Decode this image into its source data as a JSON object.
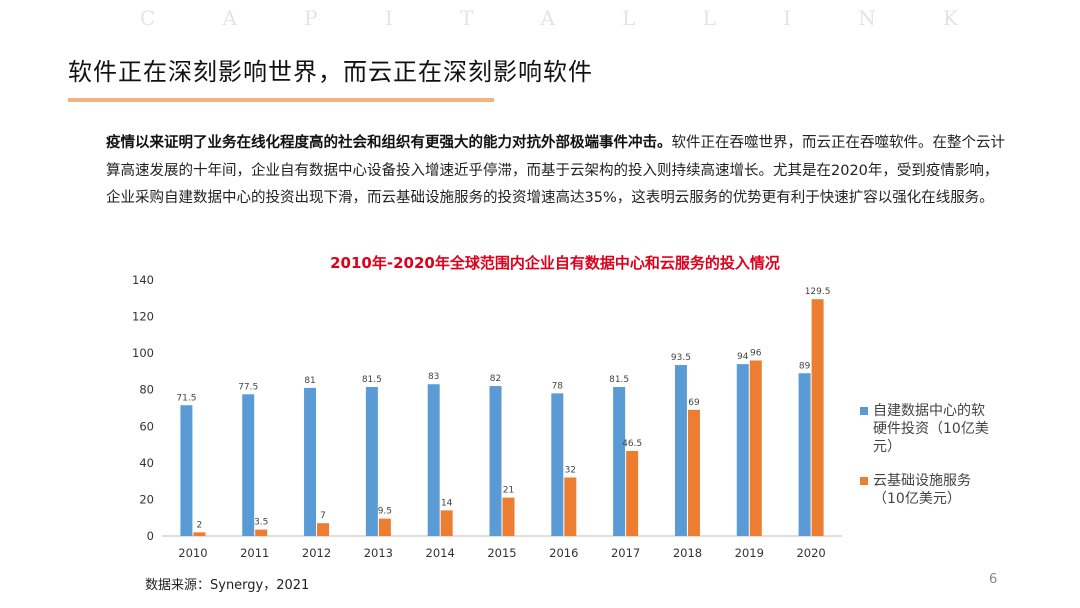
{
  "watermark": [
    "C",
    "A",
    "P",
    "I",
    "T",
    "A",
    "L",
    "L",
    "I",
    "N",
    "K"
  ],
  "title": "软件正在深刻影响世界，而云正在深刻影响软件",
  "intro": {
    "bold": "疫情以来证明了业务在线化程度高的社会和组织有更强大的能力对抗外部极端事件冲击。",
    "text": "软件正在吞噬世界，而云正在吞噬软件。在整个云计算高速发展的十年间，企业自有数据中心设备投入增速近乎停滞，而基于云架构的投入则持续高速增长。尤其是在2020年，受到疫情影响，企业采购自建数据中心的投资出现下滑，而云基础设施服务的投资增速高达35%，这表明云服务的优势更有利于快速扩容以强化在线服务。"
  },
  "chart_data": {
    "type": "bar",
    "title": "2010年-2020年全球范围内企业自有数据中心和云服务的投入情况",
    "categories": [
      "2010",
      "2011",
      "2012",
      "2013",
      "2014",
      "2015",
      "2016",
      "2017",
      "2018",
      "2019",
      "2020"
    ],
    "series": [
      {
        "name": "自建数据中心的软硬件投资（10亿美元）",
        "legend_lines": [
          "自建数据中心的软",
          "硬件投资（10亿美",
          "元）"
        ],
        "color": "#5b9bd5",
        "values": [
          71.5,
          77.5,
          81,
          81.5,
          83,
          82,
          78,
          81.5,
          93.5,
          94,
          89
        ],
        "labels": [
          "71.5",
          "77.5",
          "81",
          "81.5",
          "83",
          "82",
          "78",
          "81.5",
          "93.5",
          "94",
          "89"
        ]
      },
      {
        "name": "云基础设施服务（10亿美元）",
        "legend_lines": [
          "云基础设施服务",
          "（10亿美元）"
        ],
        "color": "#ed7d31",
        "values": [
          2,
          3.5,
          7,
          9.5,
          14,
          21,
          32,
          46.5,
          69,
          96,
          129.5
        ],
        "labels": [
          "2",
          "3.5",
          "7",
          "9.5",
          "14",
          "21",
          "32",
          "46.5",
          "69",
          "96",
          "129.5"
        ]
      }
    ],
    "ylim": [
      0,
      140
    ],
    "yticks": [
      "0",
      "20",
      "40",
      "60",
      "80",
      "100",
      "120",
      "140"
    ],
    "xlabel": "",
    "ylabel": "",
    "grid": false,
    "legend_position": "right"
  },
  "source": "数据来源：Synergy，2021",
  "page_number": "6"
}
